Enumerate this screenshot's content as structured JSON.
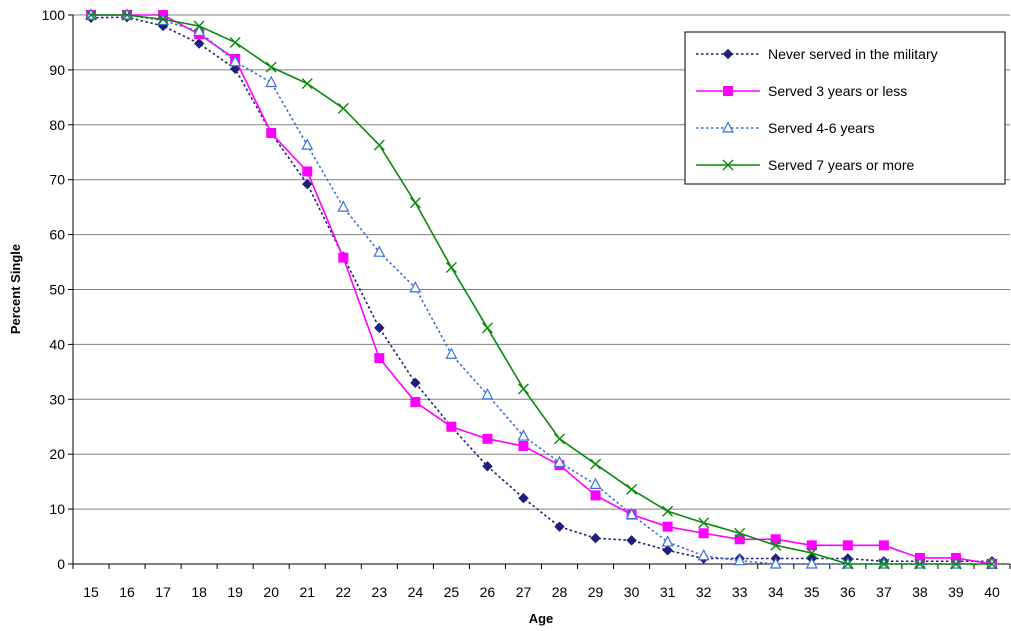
{
  "chart_data": {
    "type": "line",
    "title": "",
    "xlabel": "Age",
    "ylabel": "Percent Single",
    "x": [
      15,
      16,
      17,
      18,
      19,
      20,
      21,
      22,
      23,
      24,
      25,
      26,
      27,
      28,
      29,
      30,
      31,
      32,
      33,
      34,
      35,
      36,
      37,
      38,
      39,
      40
    ],
    "ylim": [
      0,
      100
    ],
    "yticks": [
      0,
      10,
      20,
      30,
      40,
      50,
      60,
      70,
      80,
      90,
      100
    ],
    "grid": "horizontal",
    "legend_position": "top-right",
    "series": [
      {
        "name": "Never served in the military",
        "color": "#1f1f7a",
        "line_style": "dotted",
        "marker": "diamond",
        "values": [
          99.5,
          99.6,
          98,
          94.8,
          90.2,
          78.5,
          69.2,
          56,
          43,
          33,
          25,
          17.8,
          12,
          6.8,
          4.7,
          4.3,
          2.5,
          1,
          1,
          1,
          1,
          1,
          0.5,
          0.5,
          0.5,
          0.5
        ]
      },
      {
        "name": "Served 3 years or less",
        "color": "#ff00ff",
        "line_style": "solid",
        "marker": "square",
        "values": [
          100,
          100,
          100,
          96.5,
          92,
          78.5,
          71.5,
          55.8,
          37.5,
          29.5,
          25,
          22.8,
          21.5,
          18,
          12.5,
          9,
          6.8,
          5.6,
          4.5,
          4.5,
          3.4,
          3.4,
          3.4,
          1.1,
          1.1,
          0
        ]
      },
      {
        "name": "Served 4-6 years",
        "color": "#3d6fdc",
        "line_style": "dotted",
        "marker": "triangle",
        "values": [
          100,
          100,
          99,
          97,
          91.5,
          87.7,
          76.3,
          65,
          56.8,
          50.3,
          38.2,
          30.8,
          23.3,
          18.5,
          14.5,
          9,
          4,
          1.5,
          0.6,
          0,
          0,
          0,
          0,
          0,
          0,
          0
        ]
      },
      {
        "name": "Served 7 years or more",
        "color": "#0a8a0a",
        "line_style": "solid",
        "marker": "x",
        "values": [
          100,
          100,
          99.2,
          98,
          95,
          90.5,
          87.5,
          83,
          76.3,
          65.8,
          54,
          43,
          31.9,
          22.8,
          18.2,
          13.6,
          9.6,
          7.5,
          5.6,
          3.4,
          2,
          0,
          0,
          0,
          0,
          0
        ]
      }
    ]
  }
}
